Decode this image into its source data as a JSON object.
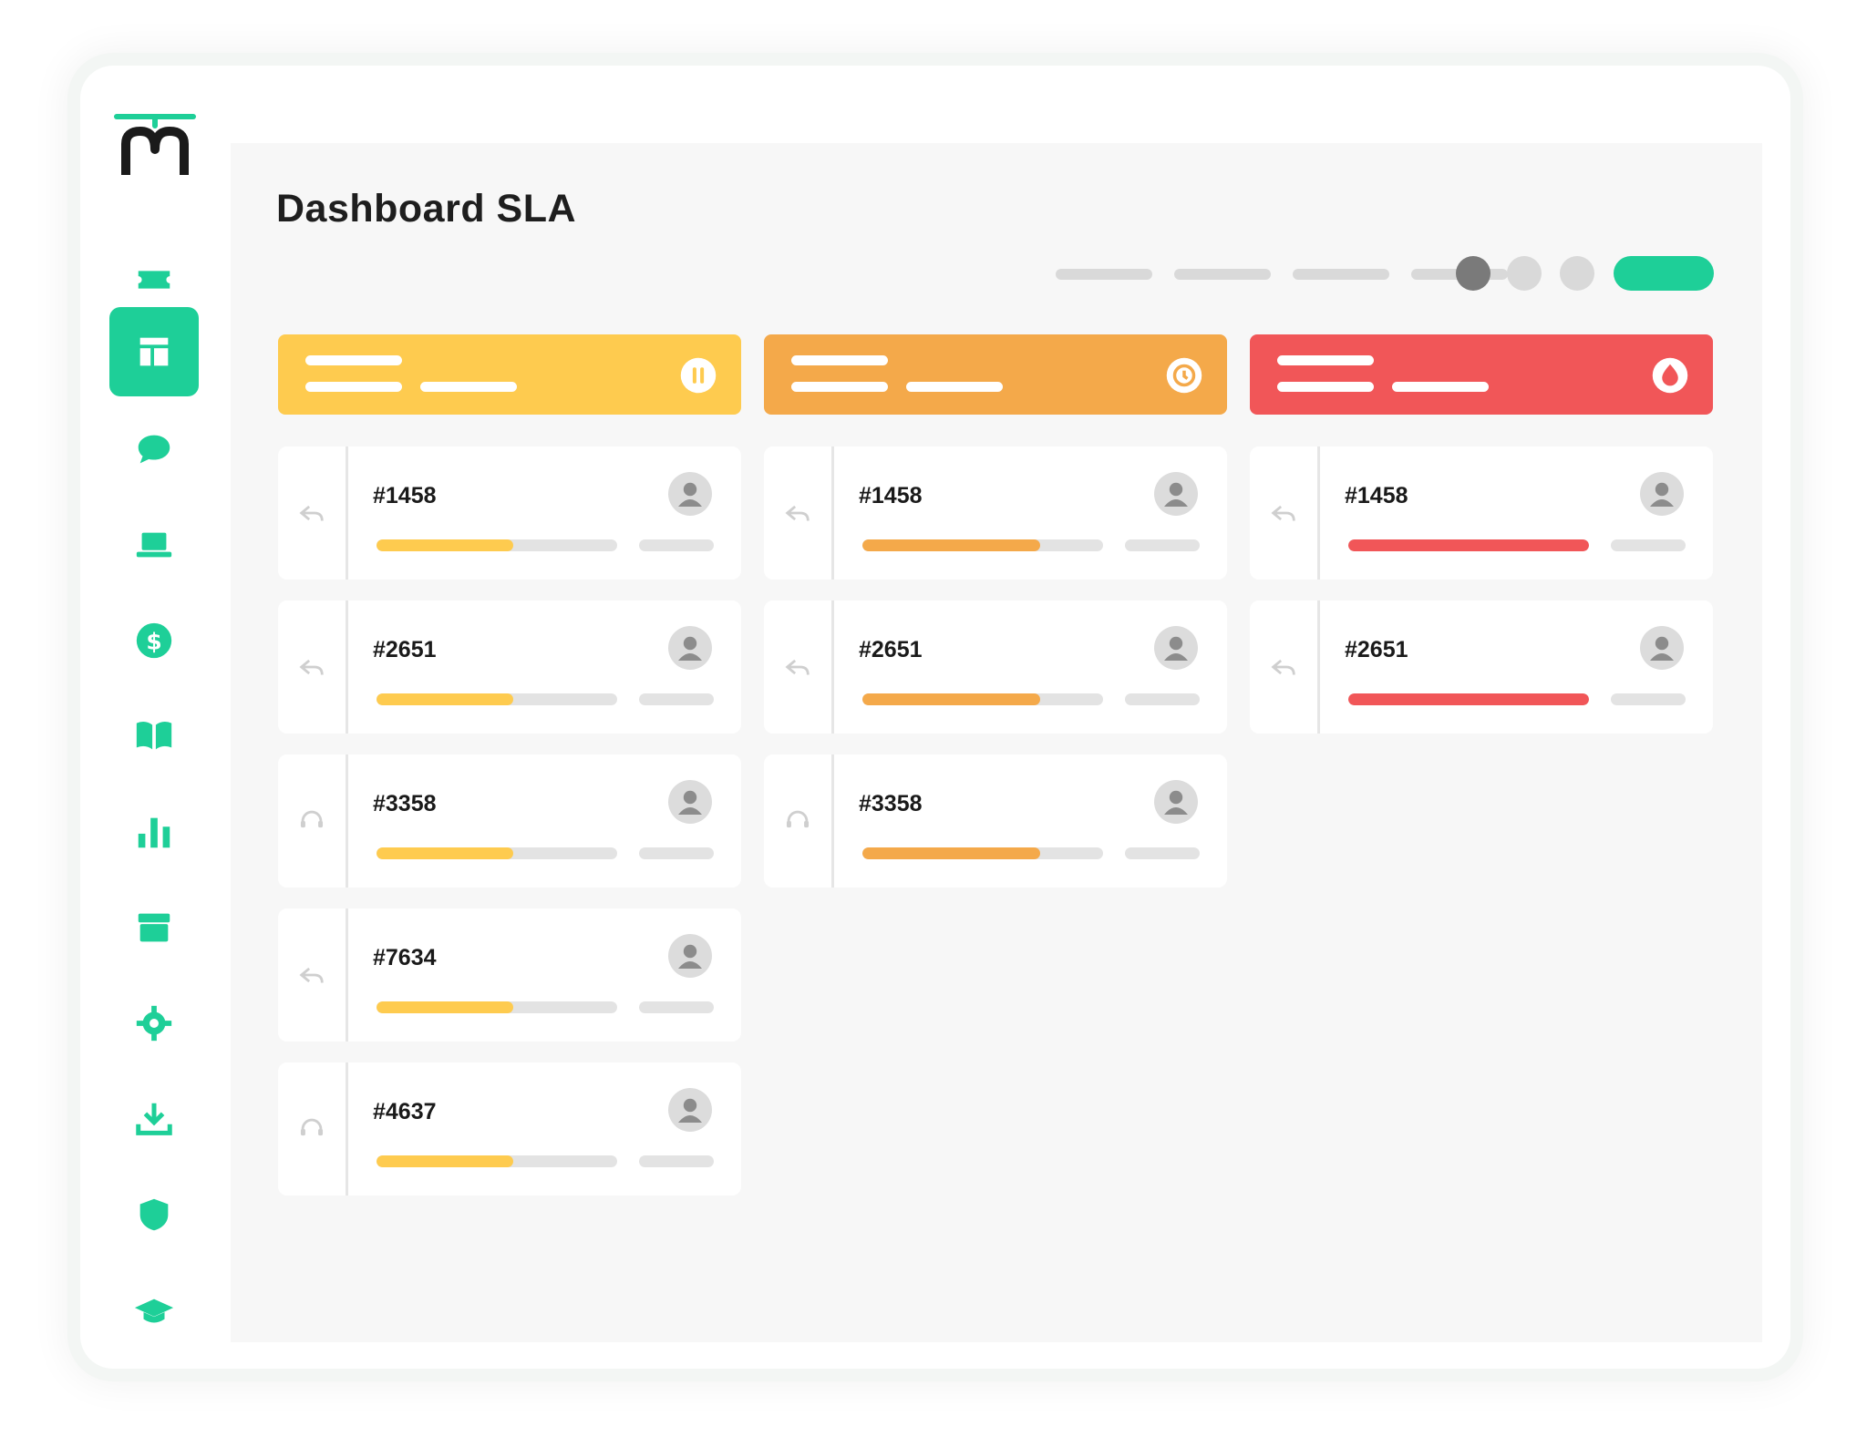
{
  "page": {
    "title": "Dashboard SLA"
  },
  "colors": {
    "accent": "#1ecf98",
    "column_1": "#fecb4f",
    "column_2": "#f4a94a",
    "column_3": "#f15658",
    "dot_dark": "#7a7a7a",
    "dot_light": "#d9d9d9"
  },
  "sidebar": {
    "items": [
      {
        "name": "ticket",
        "icon": "ticket-icon",
        "active": false
      },
      {
        "name": "dashboard",
        "icon": "dashboard-icon",
        "active": true
      },
      {
        "name": "chat",
        "icon": "chat-bubble-icon",
        "active": false
      },
      {
        "name": "computer",
        "icon": "laptop-icon",
        "active": false
      },
      {
        "name": "billing",
        "icon": "dollar-icon",
        "active": false
      },
      {
        "name": "knowledge",
        "icon": "book-icon",
        "active": false
      },
      {
        "name": "reports",
        "icon": "bar-chart-icon",
        "active": false
      },
      {
        "name": "archive",
        "icon": "archive-icon",
        "active": false
      },
      {
        "name": "settings",
        "icon": "gear-icon",
        "active": false
      },
      {
        "name": "download",
        "icon": "download-icon",
        "active": false
      },
      {
        "name": "security",
        "icon": "shield-icon",
        "active": false
      },
      {
        "name": "academy",
        "icon": "graduation-cap-icon",
        "active": false
      }
    ]
  },
  "columns": [
    {
      "status_icon": "pause-icon",
      "tickets": [
        {
          "id": "#1458",
          "type_icon": "reply-icon",
          "progress": 0.57
        },
        {
          "id": "#2651",
          "type_icon": "reply-icon",
          "progress": 0.57
        },
        {
          "id": "#3358",
          "type_icon": "headset-icon",
          "progress": 0.57
        },
        {
          "id": "#7634",
          "type_icon": "reply-icon",
          "progress": 0.57
        },
        {
          "id": "#4637",
          "type_icon": "headset-icon",
          "progress": 0.57
        }
      ]
    },
    {
      "status_icon": "clock-icon",
      "tickets": [
        {
          "id": "#1458",
          "type_icon": "reply-icon",
          "progress": 0.74
        },
        {
          "id": "#2651",
          "type_icon": "reply-icon",
          "progress": 0.74
        },
        {
          "id": "#3358",
          "type_icon": "headset-icon",
          "progress": 0.74
        }
      ]
    },
    {
      "status_icon": "flame-icon",
      "tickets": [
        {
          "id": "#1458",
          "type_icon": "reply-icon",
          "progress": 1.0
        },
        {
          "id": "#2651",
          "type_icon": "reply-icon",
          "progress": 1.0
        }
      ]
    }
  ]
}
